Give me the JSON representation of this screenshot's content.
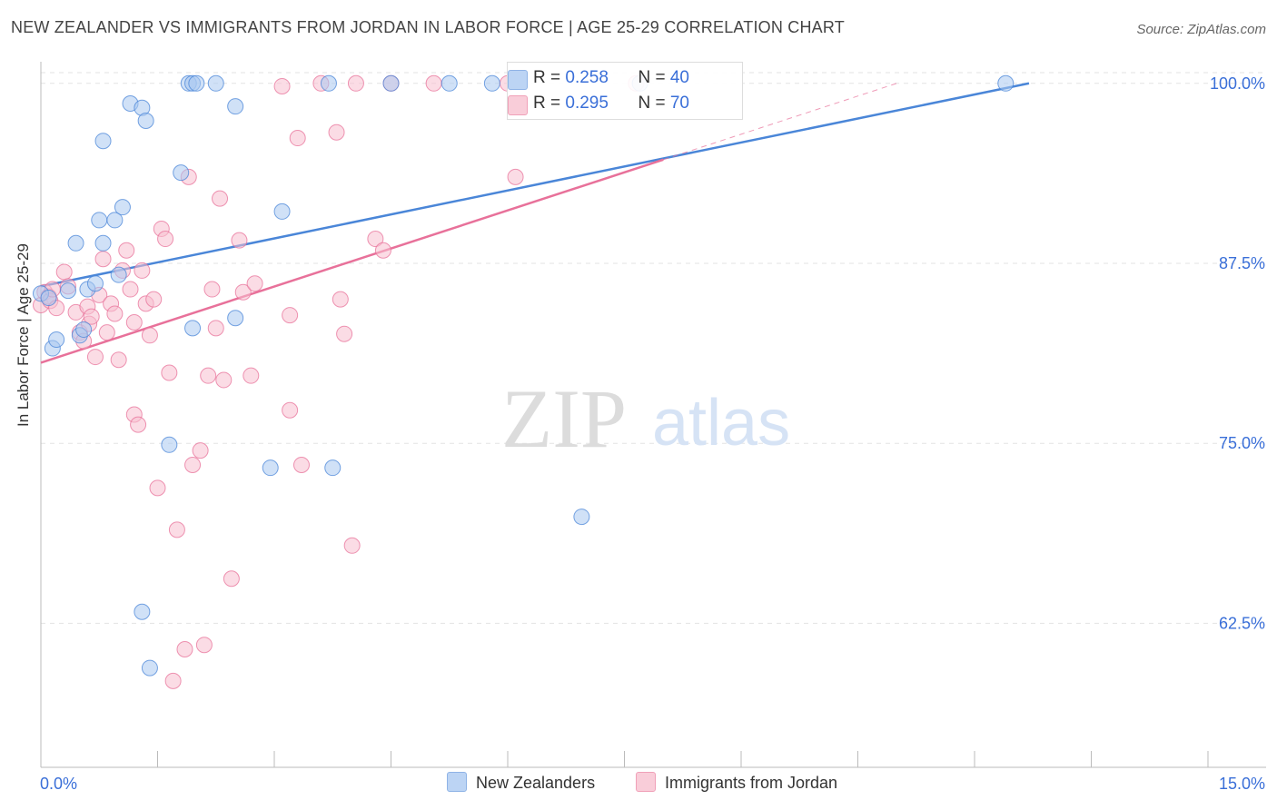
{
  "title": "NEW ZEALANDER VS IMMIGRANTS FROM JORDAN IN LABOR FORCE | AGE 25-29 CORRELATION CHART",
  "source": "Source: ZipAtlas.com",
  "watermark": {
    "zip": "ZIP",
    "atlas": "atlas"
  },
  "colors": {
    "blue": "#4a86d8",
    "blue_fill": "#aac8f0",
    "pink": "#e8719a",
    "pink_fill": "#f7bfd0",
    "axis_text": "#3a6fd8"
  },
  "stats": {
    "blue": {
      "r_label": "R = ",
      "r_value": "0.258",
      "n_label": "N = ",
      "n_value": "40"
    },
    "pink": {
      "r_label": "R = ",
      "r_value": "0.295",
      "n_label": "N = ",
      "n_value": "70"
    }
  },
  "legend": {
    "blue": "New Zealanders",
    "pink": "Immigrants from Jordan"
  },
  "chart_data": {
    "type": "scatter",
    "xlabel": "",
    "ylabel": "In Labor Force | Age 25-29",
    "xlim": [
      0,
      15
    ],
    "ylim": [
      52.5,
      101.5
    ],
    "x_tick_labels": [
      "0.0%",
      "15.0%"
    ],
    "y_ticks": [
      62.5,
      75.0,
      87.5,
      100.0
    ],
    "y_tick_labels": [
      "62.5%",
      "75.0%",
      "87.5%",
      "100.0%"
    ],
    "series": [
      {
        "name": "New Zealanders",
        "trend": {
          "x": [
            0,
            12.7
          ],
          "y": [
            85.9,
            100.0
          ],
          "dashed_to": null
        },
        "points": [
          [
            0.0,
            85.4
          ],
          [
            0.1,
            85.1
          ],
          [
            0.15,
            81.6
          ],
          [
            0.2,
            82.2
          ],
          [
            0.35,
            85.6
          ],
          [
            0.45,
            88.9
          ],
          [
            0.5,
            82.5
          ],
          [
            0.55,
            82.9
          ],
          [
            0.6,
            85.7
          ],
          [
            0.7,
            86.1
          ],
          [
            0.75,
            90.5
          ],
          [
            0.8,
            88.9
          ],
          [
            0.8,
            96.0
          ],
          [
            0.95,
            90.5
          ],
          [
            1.0,
            86.7
          ],
          [
            1.05,
            91.4
          ],
          [
            1.15,
            98.6
          ],
          [
            1.3,
            98.3
          ],
          [
            1.35,
            97.4
          ],
          [
            1.3,
            63.3
          ],
          [
            1.4,
            59.4
          ],
          [
            1.65,
            74.9
          ],
          [
            1.8,
            93.8
          ],
          [
            1.9,
            100.0
          ],
          [
            1.95,
            100.0
          ],
          [
            2.0,
            100.0
          ],
          [
            1.95,
            83.0
          ],
          [
            2.25,
            100.0
          ],
          [
            2.5,
            98.4
          ],
          [
            2.5,
            83.7
          ],
          [
            2.95,
            73.3
          ],
          [
            3.1,
            91.1
          ],
          [
            3.7,
            100.0
          ],
          [
            3.75,
            73.3
          ],
          [
            4.5,
            100.0
          ],
          [
            5.25,
            100.0
          ],
          [
            5.8,
            100.0
          ],
          [
            6.95,
            69.9
          ],
          [
            7.7,
            100.0
          ],
          [
            12.4,
            100.0
          ]
        ]
      },
      {
        "name": "Immigrants from Jordan",
        "trend": {
          "x": [
            0,
            8.0
          ],
          "y": [
            80.6,
            94.7
          ],
          "dashed_to": [
            11.0,
            100.0
          ]
        },
        "points": [
          [
            0.0,
            84.6
          ],
          [
            0.05,
            85.5
          ],
          [
            0.1,
            85.2
          ],
          [
            0.12,
            84.9
          ],
          [
            0.15,
            85.7
          ],
          [
            0.2,
            84.4
          ],
          [
            0.3,
            86.9
          ],
          [
            0.35,
            85.9
          ],
          [
            0.45,
            84.1
          ],
          [
            0.5,
            82.7
          ],
          [
            0.55,
            82.1
          ],
          [
            0.6,
            84.5
          ],
          [
            0.62,
            83.3
          ],
          [
            0.65,
            83.8
          ],
          [
            0.7,
            81.0
          ],
          [
            0.75,
            85.3
          ],
          [
            0.8,
            87.8
          ],
          [
            0.85,
            82.7
          ],
          [
            0.9,
            84.7
          ],
          [
            0.95,
            84.0
          ],
          [
            1.0,
            80.8
          ],
          [
            1.05,
            87.0
          ],
          [
            1.1,
            88.4
          ],
          [
            1.15,
            85.7
          ],
          [
            1.2,
            83.4
          ],
          [
            1.2,
            77.0
          ],
          [
            1.25,
            76.3
          ],
          [
            1.3,
            87.0
          ],
          [
            1.35,
            84.7
          ],
          [
            1.4,
            82.5
          ],
          [
            1.45,
            85.0
          ],
          [
            1.5,
            71.9
          ],
          [
            1.55,
            89.9
          ],
          [
            1.6,
            89.2
          ],
          [
            1.65,
            79.9
          ],
          [
            1.7,
            58.5
          ],
          [
            1.75,
            69.0
          ],
          [
            1.85,
            60.7
          ],
          [
            1.9,
            93.5
          ],
          [
            1.95,
            73.5
          ],
          [
            2.05,
            74.5
          ],
          [
            2.1,
            61.0
          ],
          [
            2.15,
            79.7
          ],
          [
            2.2,
            85.7
          ],
          [
            2.25,
            83.0
          ],
          [
            2.3,
            92.0
          ],
          [
            2.35,
            79.4
          ],
          [
            2.45,
            65.6
          ],
          [
            2.55,
            89.1
          ],
          [
            2.6,
            85.5
          ],
          [
            2.7,
            79.7
          ],
          [
            2.75,
            86.1
          ],
          [
            3.1,
            99.8
          ],
          [
            3.2,
            83.9
          ],
          [
            3.2,
            77.3
          ],
          [
            3.3,
            96.2
          ],
          [
            3.35,
            73.5
          ],
          [
            3.6,
            100.0
          ],
          [
            3.8,
            96.6
          ],
          [
            3.85,
            85.0
          ],
          [
            3.9,
            82.6
          ],
          [
            4.0,
            67.9
          ],
          [
            4.05,
            100.0
          ],
          [
            4.3,
            89.2
          ],
          [
            4.4,
            88.4
          ],
          [
            4.5,
            100.0
          ],
          [
            5.05,
            100.0
          ],
          [
            6.0,
            100.0
          ],
          [
            6.1,
            93.5
          ],
          [
            7.65,
            100.0
          ]
        ]
      }
    ]
  }
}
